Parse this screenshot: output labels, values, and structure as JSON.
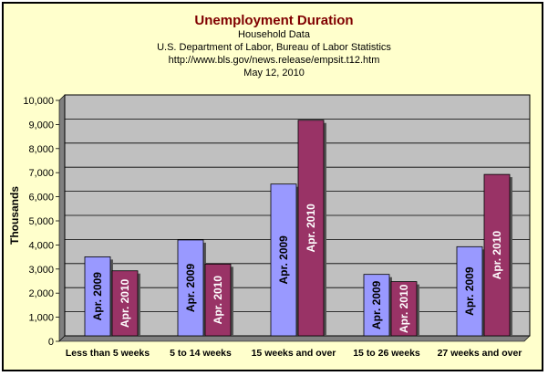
{
  "chart_data": {
    "type": "bar",
    "title": "Unemployment Duration",
    "subtitle": [
      "Household Data",
      "U.S. Department of Labor, Bureau of Labor Statistics",
      "http://www.bls.gov/news.release/empsit.t12.htm",
      "May 12, 2010"
    ],
    "ylabel": "Thousands",
    "xlabel": "",
    "ylim": [
      0,
      10000
    ],
    "yticks": [
      "0",
      "1,000",
      "2,000",
      "3,000",
      "4,000",
      "5,000",
      "6,000",
      "7,000",
      "8,000",
      "9,000",
      "10,000"
    ],
    "categories": [
      "Less than 5 weeks",
      "5 to 14 weeks",
      "15 weeks and over",
      "15 to 26 weeks",
      "27 weeks and over"
    ],
    "series": [
      {
        "name": "Apr. 2009",
        "values": [
          3280,
          3980,
          6300,
          2550,
          3700
        ],
        "color": "#9999FF"
      },
      {
        "name": "Apr. 2010",
        "values": [
          2700,
          2980,
          8950,
          2250,
          6700
        ],
        "color": "#993366"
      }
    ],
    "grid": true,
    "plot_background": "#C0C0C0",
    "data_labels": "series-name-vertical"
  }
}
